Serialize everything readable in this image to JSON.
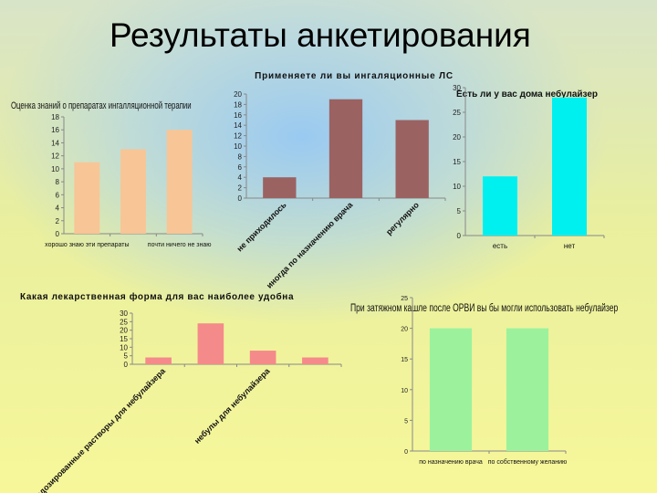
{
  "slide_title": "Результаты анкетирования",
  "chart_data": [
    {
      "id": "c1",
      "type": "bar",
      "title": "Оценка знаний о препаратах ингалляционной терапии",
      "categories": [
        "хорошо знаю эти препараты",
        "",
        "почти ничего не знаю"
      ],
      "values": [
        11,
        13,
        16
      ],
      "ylim": [
        0,
        18
      ],
      "yticks": [
        0,
        2,
        4,
        6,
        8,
        10,
        12,
        14,
        16,
        18
      ],
      "color": "#f8c596",
      "grid": false
    },
    {
      "id": "c2",
      "type": "bar",
      "title": "Применяете ли вы ингаляционные ЛС",
      "categories": [
        "не приходилось",
        "иногда по назначению врача",
        "регулярно"
      ],
      "values": [
        4,
        19,
        15
      ],
      "ylim": [
        0,
        20
      ],
      "yticks": [
        0,
        2,
        4,
        6,
        8,
        10,
        12,
        14,
        16,
        18,
        20
      ],
      "color": "#9b6262",
      "grid": false
    },
    {
      "id": "c3",
      "type": "bar",
      "title": "Есть ли у вас дома небулайзер",
      "categories": [
        "есть",
        "нет"
      ],
      "values": [
        12,
        28
      ],
      "ylim": [
        0,
        30
      ],
      "yticks": [
        0,
        5,
        10,
        15,
        20,
        25,
        30
      ],
      "color": "#00f0f0",
      "grid": false
    },
    {
      "id": "c4",
      "type": "bar",
      "title": "Какая лекарственная форма для вас наиболее удобна",
      "categories": [
        "недозированные растворы для небулайзера",
        "",
        "небулы для небулайзера",
        ""
      ],
      "values": [
        4,
        24,
        8,
        4
      ],
      "ylim": [
        0,
        30
      ],
      "yticks": [
        0,
        5,
        10,
        15,
        20,
        25,
        30
      ],
      "color": "#f58a8a",
      "grid": false
    },
    {
      "id": "c5",
      "type": "bar",
      "title": "При затяжном кашле после ОРВИ вы бы могли использовать небулайзер",
      "categories": [
        "по назначению врача",
        "по собственному желанию"
      ],
      "values": [
        20,
        20
      ],
      "ylim": [
        0,
        25
      ],
      "yticks": [
        0,
        5,
        10,
        15,
        20,
        25
      ],
      "color": "#9cf29c",
      "grid": false
    }
  ]
}
